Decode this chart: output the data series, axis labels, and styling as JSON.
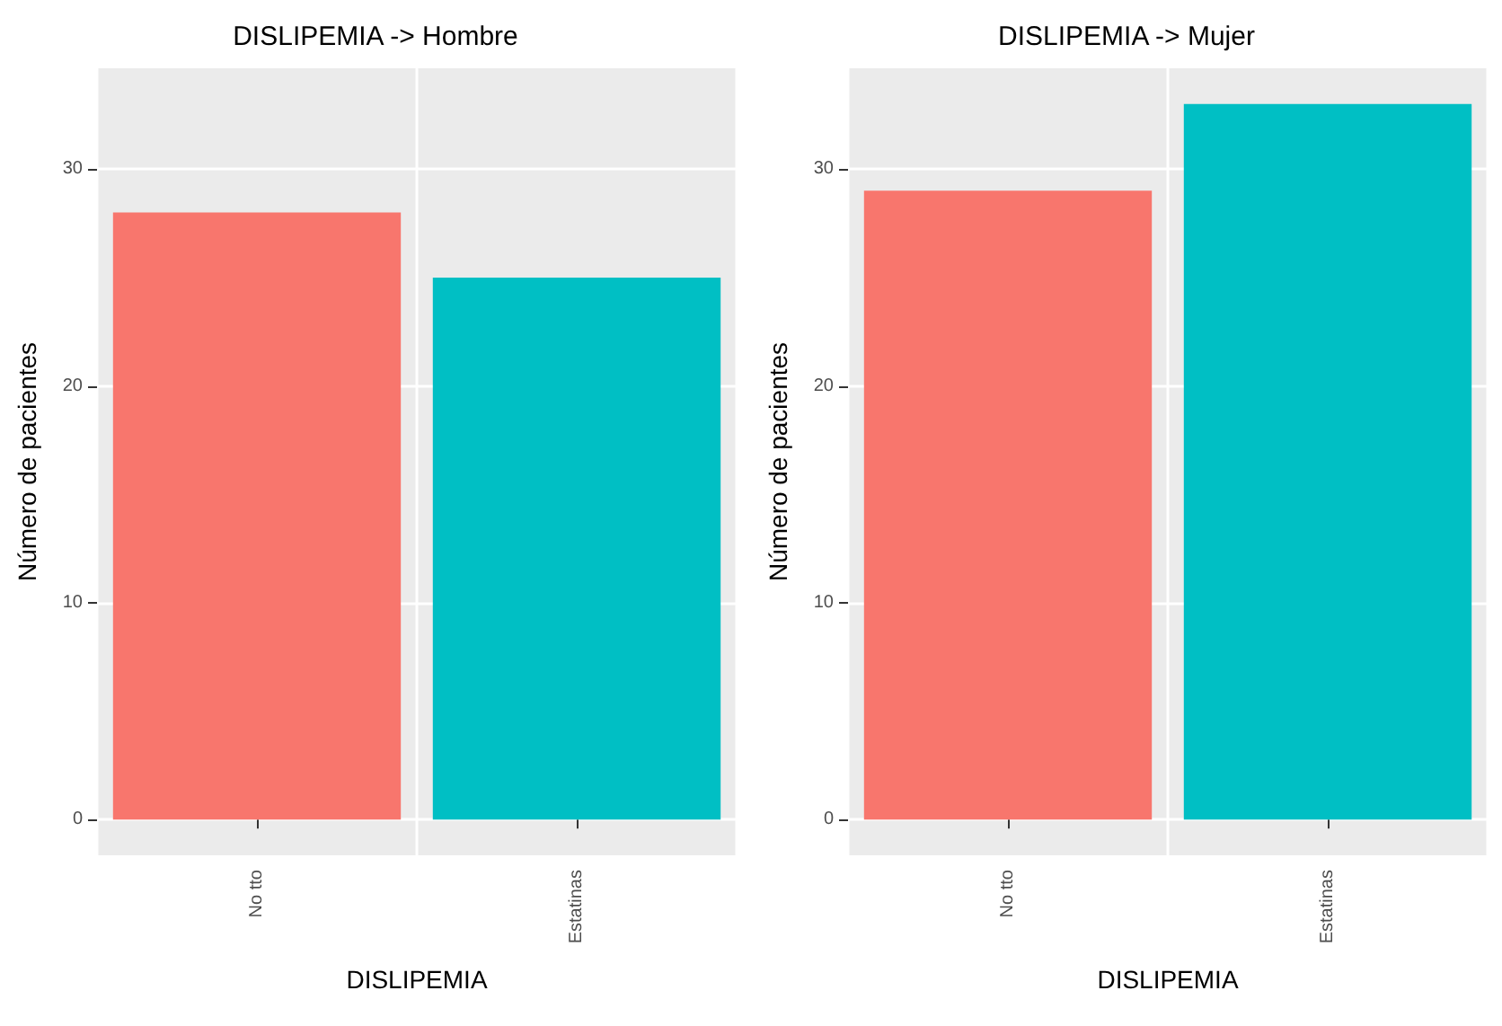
{
  "chart_data": [
    {
      "type": "bar",
      "title": "DISLIPEMIA -> Hombre",
      "xlabel": "DISLIPEMIA",
      "ylabel": "Número de pacientes",
      "categories": [
        "No tto",
        "Estatinas"
      ],
      "values": [
        28,
        25
      ],
      "colors": [
        "#f8766d",
        "#00bfc4"
      ],
      "ylim": [
        -1.65,
        34.65
      ],
      "yticks": [
        0,
        10,
        20,
        30
      ],
      "grid": true
    },
    {
      "type": "bar",
      "title": "DISLIPEMIA -> Mujer",
      "xlabel": "DISLIPEMIA",
      "ylabel": "Número de pacientes",
      "categories": [
        "No tto",
        "Estatinas"
      ],
      "values": [
        29,
        33
      ],
      "colors": [
        "#f8766d",
        "#00bfc4"
      ],
      "ylim": [
        -1.65,
        34.65
      ],
      "yticks": [
        0,
        10,
        20,
        30
      ],
      "grid": true
    }
  ]
}
